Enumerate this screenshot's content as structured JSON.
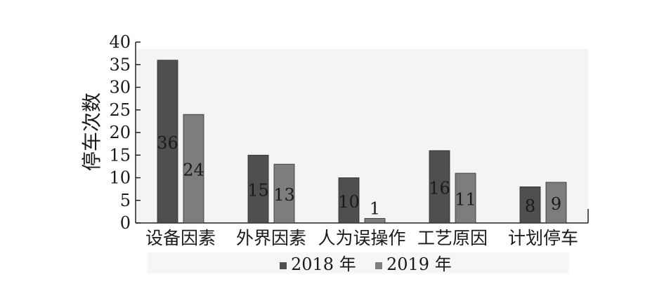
{
  "chart_data": {
    "type": "bar",
    "title": "",
    "xlabel": "",
    "ylabel": "停车次数",
    "ylim": [
      0,
      40
    ],
    "yticks": [
      0,
      5,
      10,
      15,
      20,
      25,
      30,
      35,
      40
    ],
    "grid": false,
    "legend_position": "bottom",
    "categories": [
      "设备因素",
      "外界因素",
      "人为误操作",
      "工艺原因",
      "计划停车"
    ],
    "series": [
      {
        "name": "2018 年",
        "values": [
          36,
          15,
          10,
          16,
          8
        ],
        "color": "#4f4f4f"
      },
      {
        "name": "2019 年",
        "values": [
          24,
          13,
          1,
          11,
          9
        ],
        "color": "#7d7d7d"
      }
    ]
  }
}
